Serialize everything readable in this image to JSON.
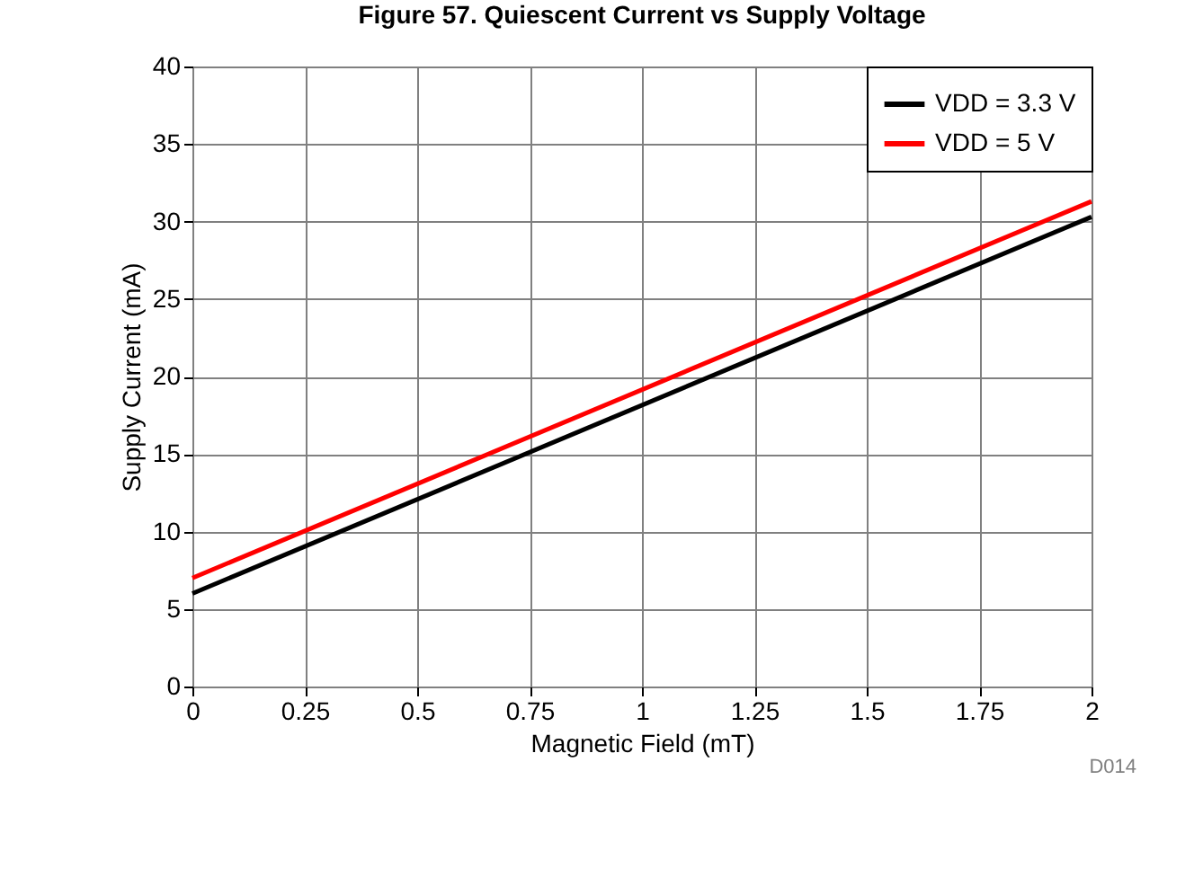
{
  "chart_data": {
    "type": "line",
    "title": "Figure 57. Quiescent Current vs Supply Voltage",
    "xlabel": "Magnetic Field (mT)",
    "ylabel": "Supply Current (mA)",
    "x": [
      0,
      2
    ],
    "series": [
      {
        "name": "VDD = 3.3 V",
        "color": "#000000",
        "values": [
          6,
          30.3
        ]
      },
      {
        "name": "VDD = 5 V",
        "color": "#ff0000",
        "values": [
          7,
          31.3
        ]
      }
    ],
    "xlim": [
      0,
      2
    ],
    "xticks": [
      0,
      0.25,
      0.5,
      0.75,
      1,
      1.25,
      1.5,
      1.75,
      2
    ],
    "ylim": [
      0,
      40
    ],
    "yticks": [
      0,
      5,
      10,
      15,
      20,
      25,
      30,
      35,
      40
    ],
    "grid": true,
    "legend": "top right",
    "marker": "none",
    "line_style": "solid",
    "annotations": [
      "D014"
    ]
  }
}
